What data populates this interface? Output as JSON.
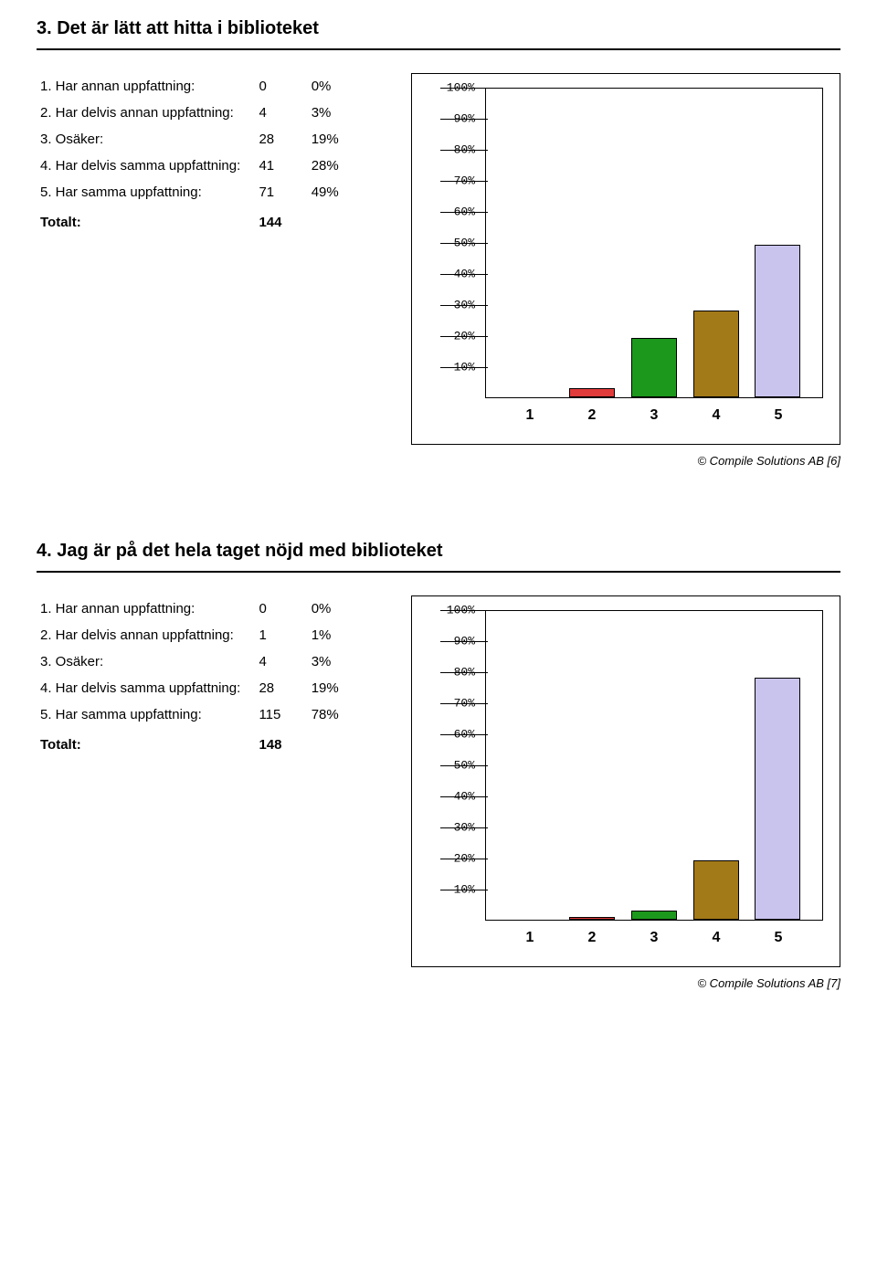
{
  "sections": [
    {
      "title": "3. Det är lätt att hitta i biblioteket",
      "rows": [
        {
          "label": "1. Har annan uppfattning:",
          "count": "0",
          "pct": "0%"
        },
        {
          "label": "2. Har delvis annan uppfattning:",
          "count": "4",
          "pct": "3%"
        },
        {
          "label": "3. Osäker:",
          "count": "28",
          "pct": "19%"
        },
        {
          "label": "4. Har delvis samma uppfattning:",
          "count": "41",
          "pct": "28%"
        },
        {
          "label": "5. Har samma uppfattning:",
          "count": "71",
          "pct": "49%"
        }
      ],
      "total_label": "Totalt:",
      "total_value": "144",
      "chart": {
        "type": "bar",
        "ymax": 100,
        "ytick_step": 10,
        "ytick_suffix": "%",
        "categories": [
          "1",
          "2",
          "3",
          "4",
          "5"
        ],
        "values": [
          0,
          3,
          19,
          28,
          49
        ],
        "bar_colors": [
          "#e23b3b",
          "#e23b3b",
          "#1c991c",
          "#a37a18",
          "#c9c4ee"
        ],
        "bar_borders": [
          "#000",
          "#000",
          "#000",
          "#000",
          "#000"
        ],
        "background_color": "#ffffff"
      },
      "copyright": "© Compile Solutions AB [6]"
    },
    {
      "title": "4. Jag är på det hela taget nöjd med biblioteket",
      "rows": [
        {
          "label": "1. Har annan uppfattning:",
          "count": "0",
          "pct": "0%"
        },
        {
          "label": "2. Har delvis annan uppfattning:",
          "count": "1",
          "pct": "1%"
        },
        {
          "label": "3. Osäker:",
          "count": "4",
          "pct": "3%"
        },
        {
          "label": "4. Har delvis samma uppfattning:",
          "count": "28",
          "pct": "19%"
        },
        {
          "label": "5. Har samma uppfattning:",
          "count": "115",
          "pct": "78%"
        }
      ],
      "total_label": "Totalt:",
      "total_value": "148",
      "chart": {
        "type": "bar",
        "ymax": 100,
        "ytick_step": 10,
        "ytick_suffix": "%",
        "categories": [
          "1",
          "2",
          "3",
          "4",
          "5"
        ],
        "values": [
          0,
          1,
          3,
          19,
          78
        ],
        "bar_colors": [
          "#e23b3b",
          "#e23b3b",
          "#1c991c",
          "#a37a18",
          "#c9c4ee"
        ],
        "bar_borders": [
          "#000",
          "#000",
          "#000",
          "#000",
          "#000"
        ],
        "background_color": "#ffffff"
      },
      "copyright": "© Compile Solutions AB [7]"
    }
  ]
}
